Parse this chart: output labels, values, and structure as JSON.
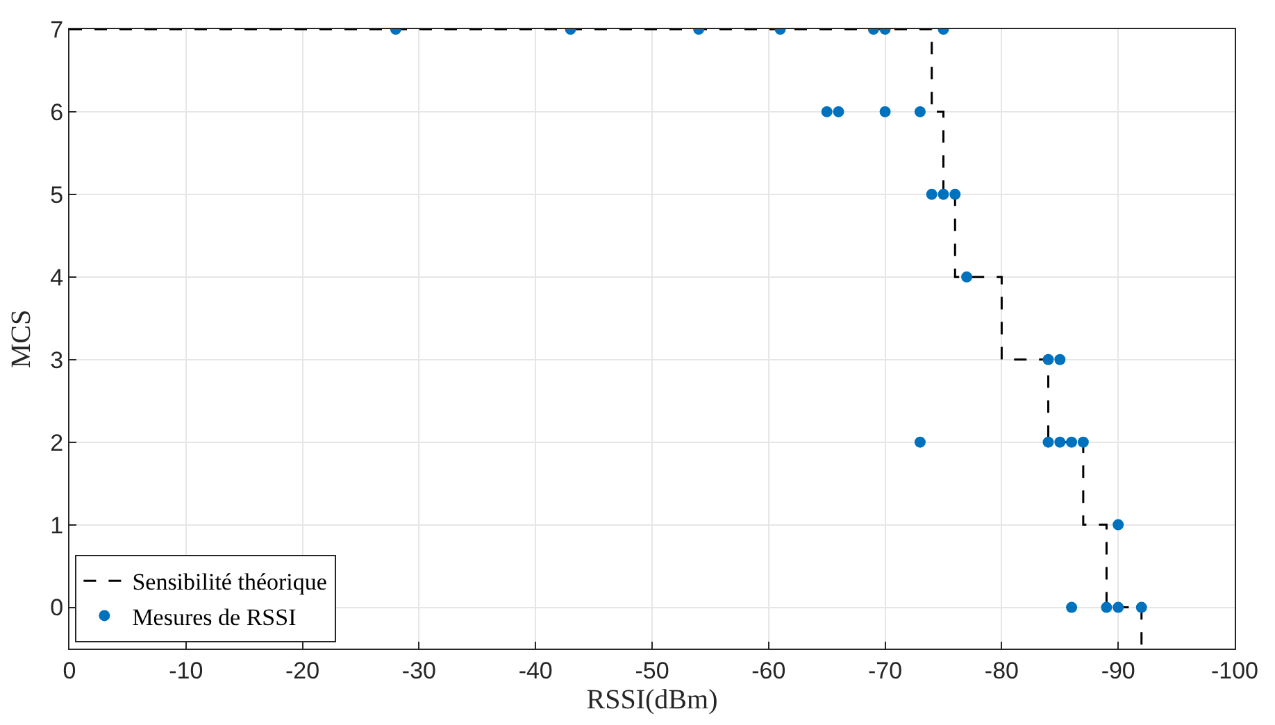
{
  "chart_data": {
    "type": "scatter",
    "xlabel": "RSSI(dBm)",
    "ylabel": "MCS",
    "xlim": [
      0,
      -100
    ],
    "xticks": [
      0,
      -10,
      -20,
      -30,
      -40,
      -50,
      -60,
      -70,
      -80,
      -90,
      -100
    ],
    "ylim": [
      -0.5,
      7
    ],
    "yticks": [
      0,
      1,
      2,
      3,
      4,
      5,
      6,
      7
    ],
    "grid": true,
    "legend": "bottom left",
    "series": [
      {
        "name": "Sensibilité théorique",
        "type": "step",
        "color": "#000000",
        "line_style": "dashed",
        "marker": "none",
        "x": [
          0,
          -74,
          -75,
          -76,
          -80,
          -84,
          -87,
          -89,
          -92
        ],
        "values": [
          7,
          6,
          5,
          4,
          3,
          2,
          1,
          0,
          -0.5
        ]
      },
      {
        "name": "Mesures de RSSI",
        "color": "#0072bd",
        "marker": "circle",
        "x": [
          -28,
          -43,
          -54,
          -61,
          -69,
          -70,
          -75,
          -65,
          -66,
          -70,
          -73,
          -74,
          -75,
          -76,
          -77,
          -84,
          -85,
          -73,
          -84,
          -85,
          -86,
          -87,
          -90,
          -86,
          -89,
          -90,
          -92
        ],
        "values": [
          7,
          7,
          7,
          7,
          7,
          7,
          7,
          6,
          6,
          6,
          6,
          5,
          5,
          5,
          4,
          3,
          3,
          2,
          2,
          2,
          2,
          2,
          1,
          0,
          0,
          0,
          0
        ]
      }
    ]
  }
}
